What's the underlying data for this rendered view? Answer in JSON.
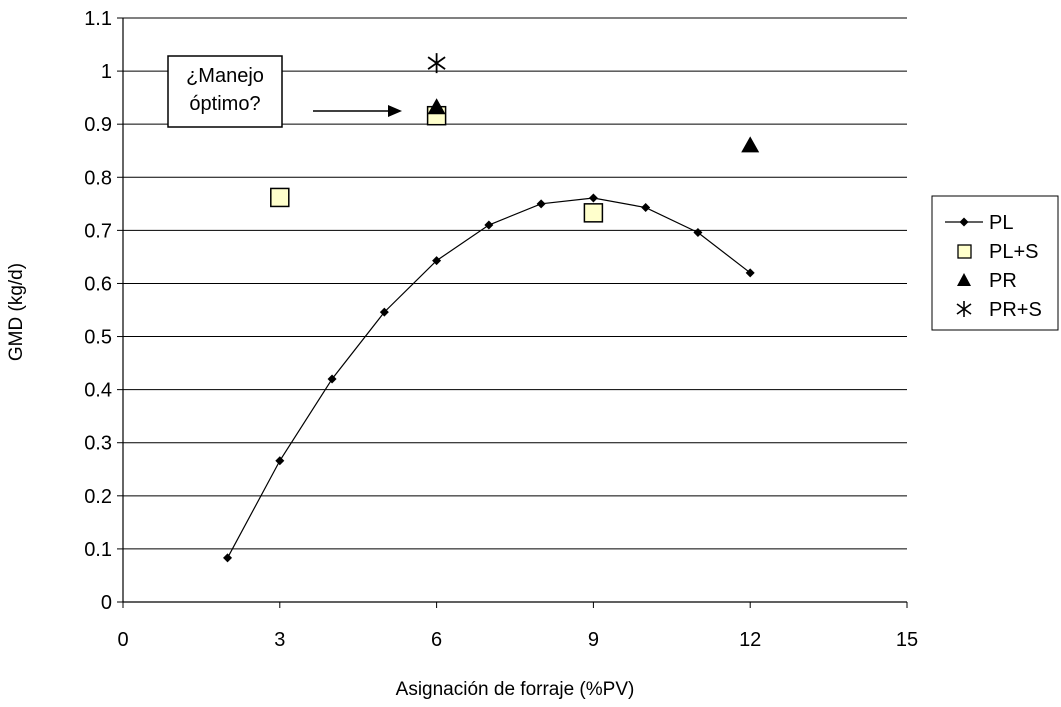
{
  "chart_data": {
    "type": "scatter",
    "xlabel": "Asignación de forraje (%PV)",
    "ylabel": "GMD (kg/d)",
    "xlim": [
      0,
      15
    ],
    "ylim": [
      0,
      1.1
    ],
    "xticks": [
      0,
      3,
      6,
      9,
      12,
      15
    ],
    "yticks": [
      0,
      0.1,
      0.2,
      0.3,
      0.4,
      0.5,
      0.6,
      0.7,
      0.8,
      0.9,
      1,
      1.1
    ],
    "grid": "horizontal",
    "legend_position": "right",
    "series": [
      {
        "name": "PL",
        "marker": "diamond",
        "line": true,
        "color": "#000000",
        "x": [
          2,
          3,
          4,
          5,
          6,
          7,
          8,
          9,
          10,
          11,
          12
        ],
        "y": [
          0.083,
          0.266,
          0.42,
          0.546,
          0.643,
          0.71,
          0.75,
          0.761,
          0.743,
          0.696,
          0.62
        ]
      },
      {
        "name": "PL+S",
        "marker": "square",
        "line": false,
        "color": "#ffffcc",
        "x": [
          3,
          6,
          9
        ],
        "y": [
          0.762,
          0.916,
          0.733
        ]
      },
      {
        "name": "PR",
        "marker": "triangle",
        "line": false,
        "color": "#000000",
        "x": [
          6,
          12
        ],
        "y": [
          0.932,
          0.86
        ]
      },
      {
        "name": "PR+S",
        "marker": "asterisk",
        "line": false,
        "color": "#000000",
        "x": [
          6
        ],
        "y": [
          1.015
        ]
      }
    ],
    "annotation": {
      "lines": [
        "¿Manejo",
        "óptimo?"
      ],
      "arrow_target": "PL+S at x=6"
    }
  }
}
